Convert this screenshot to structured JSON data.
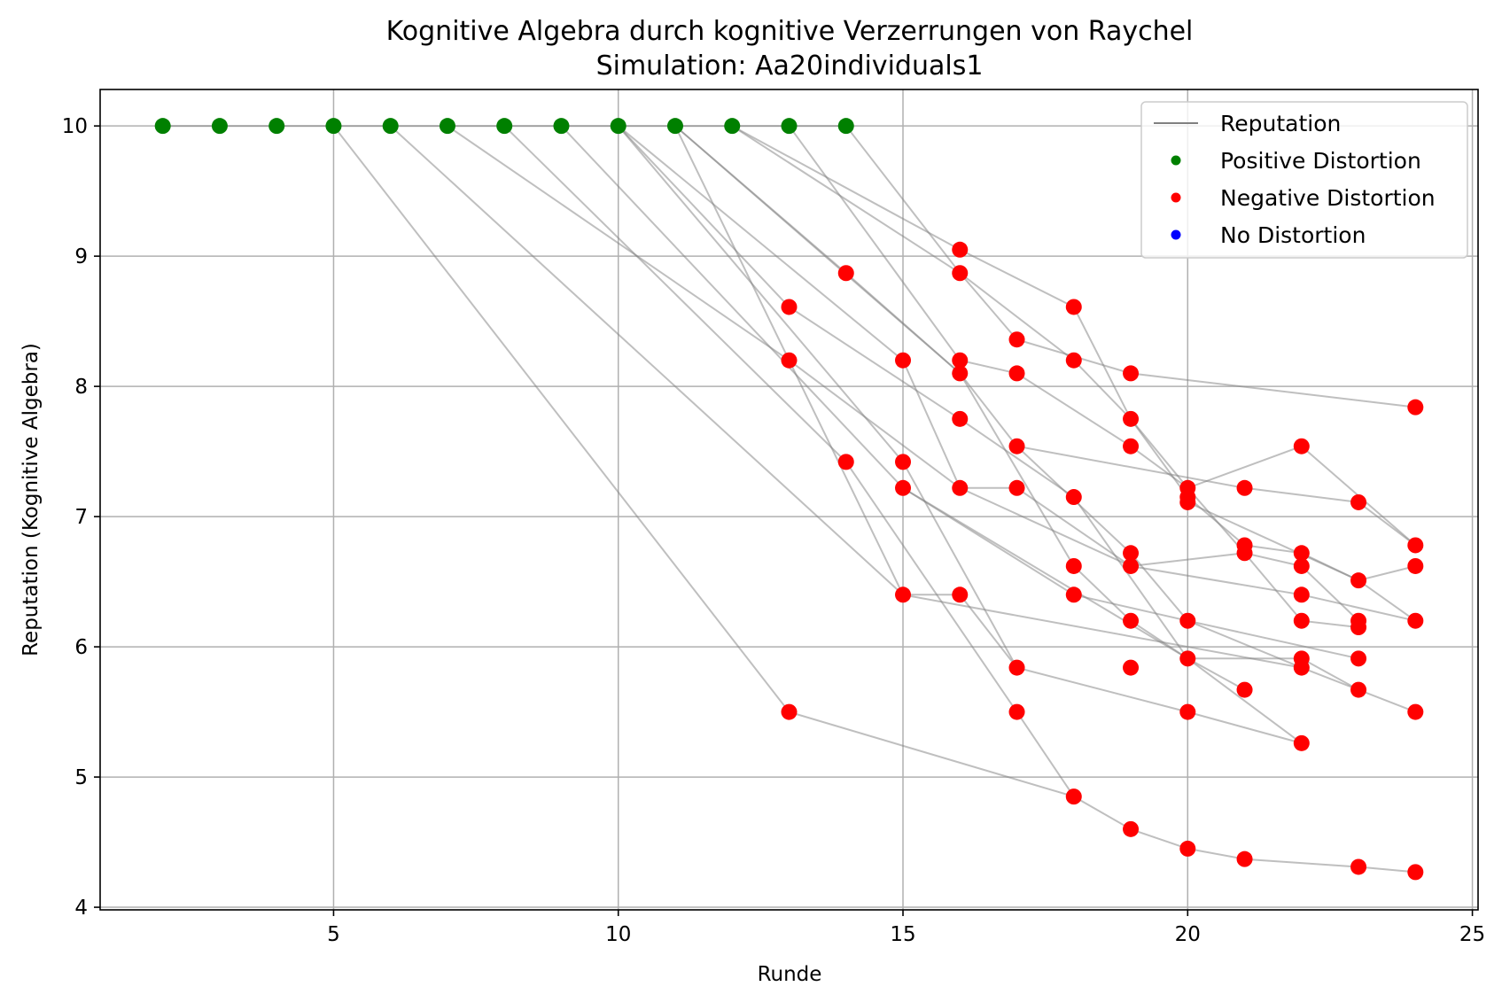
{
  "chart_data": {
    "type": "scatter",
    "title": "Kognitive Algebra durch kognitive Verzerrungen von Raychel",
    "subtitle": "Simulation: Aa20individuals1",
    "xlabel": "Runde",
    "ylabel": "Reputation (Kognitive Algebra)",
    "xlim": [
      0.9,
      25.1
    ],
    "ylim": [
      3.98,
      10.28
    ],
    "xticks": [
      5,
      10,
      15,
      20,
      25
    ],
    "yticks": [
      4,
      5,
      6,
      7,
      8,
      9,
      10
    ],
    "grid": true,
    "legend": {
      "position": "top-right",
      "entries": [
        {
          "label": "Reputation",
          "kind": "line",
          "color": "#808080"
        },
        {
          "label": "Positive Distortion",
          "kind": "marker",
          "color": "#008000"
        },
        {
          "label": "Negative Distortion",
          "kind": "marker",
          "color": "#ff0000"
        },
        {
          "label": "No Distortion",
          "kind": "marker",
          "color": "#0000ff"
        }
      ]
    },
    "colors": {
      "positive": "#008000",
      "negative": "#ff0000",
      "none": "#0000ff",
      "line": "#808080"
    },
    "series": [
      {
        "points": [
          [
            2,
            10
          ],
          [
            3,
            10
          ],
          [
            4,
            10
          ],
          [
            5,
            10
          ],
          [
            6,
            10
          ],
          [
            7,
            10
          ],
          [
            8,
            10
          ],
          [
            9,
            10
          ],
          [
            10,
            10
          ],
          [
            11,
            10
          ],
          [
            12,
            10
          ],
          [
            13,
            10
          ],
          [
            14,
            10
          ]
        ]
      },
      {
        "points": [
          [
            5,
            10
          ],
          [
            13,
            5.5
          ],
          [
            18,
            4.85
          ],
          [
            19,
            4.6
          ],
          [
            20,
            4.45
          ],
          [
            21,
            4.37
          ],
          [
            23,
            4.31
          ],
          [
            24,
            4.27
          ]
        ]
      },
      {
        "points": [
          [
            6,
            10
          ],
          [
            15,
            6.4
          ],
          [
            22,
            5.84
          ]
        ]
      },
      {
        "points": [
          [
            7,
            10
          ],
          [
            13,
            8.2
          ],
          [
            16,
            7.22
          ],
          [
            19,
            6.62
          ],
          [
            22,
            6.4
          ],
          [
            24,
            6.2
          ]
        ]
      },
      {
        "points": [
          [
            8,
            10
          ],
          [
            14,
            7.42
          ],
          [
            17,
            5.5
          ],
          [
            18,
            4.85
          ]
        ]
      },
      {
        "points": [
          [
            9,
            10
          ],
          [
            15,
            7.22
          ],
          [
            20,
            5.91
          ],
          [
            21,
            5.67
          ]
        ]
      },
      {
        "points": [
          [
            10,
            10
          ],
          [
            13,
            8.61
          ],
          [
            16,
            7.75
          ],
          [
            18,
            7.15
          ],
          [
            20,
            5.91
          ],
          [
            22,
            5.26
          ]
        ]
      },
      {
        "points": [
          [
            10,
            10
          ],
          [
            15,
            7.42
          ],
          [
            17,
            5.84
          ],
          [
            20,
            5.5
          ],
          [
            22,
            5.26
          ]
        ]
      },
      {
        "points": [
          [
            10,
            10
          ],
          [
            15,
            8.2
          ],
          [
            16,
            7.22
          ],
          [
            17,
            7.22
          ],
          [
            19,
            6.62
          ],
          [
            21,
            6.72
          ],
          [
            22,
            6.62
          ],
          [
            23,
            6.2
          ]
        ]
      },
      {
        "points": [
          [
            11,
            10
          ],
          [
            13,
            8.2
          ],
          [
            15,
            6.4
          ],
          [
            16,
            6.4
          ],
          [
            17,
            5.84
          ]
        ]
      },
      {
        "points": [
          [
            11,
            10
          ],
          [
            16,
            8.1
          ],
          [
            17,
            7.54
          ],
          [
            19,
            6.72
          ],
          [
            20,
            6.2
          ],
          [
            22,
            5.84
          ],
          [
            24,
            5.5
          ]
        ]
      },
      {
        "points": [
          [
            11,
            10
          ],
          [
            14,
            8.87
          ],
          [
            16,
            8.1
          ],
          [
            18,
            6.62
          ],
          [
            19,
            6.2
          ],
          [
            20,
            5.91
          ],
          [
            22,
            5.91
          ],
          [
            23,
            5.67
          ]
        ]
      },
      {
        "points": [
          [
            12,
            10
          ],
          [
            16,
            9.05
          ],
          [
            18,
            8.61
          ],
          [
            19,
            7.75
          ],
          [
            20,
            7.22
          ],
          [
            21,
            6.72
          ],
          [
            22,
            6.2
          ],
          [
            23,
            6.15
          ]
        ]
      },
      {
        "points": [
          [
            12,
            10
          ],
          [
            16,
            8.87
          ],
          [
            17,
            8.36
          ],
          [
            19,
            8.1
          ],
          [
            24,
            7.84
          ]
        ]
      },
      {
        "points": [
          [
            13,
            10
          ],
          [
            16,
            8.2
          ],
          [
            17,
            8.1
          ],
          [
            19,
            7.54
          ],
          [
            20,
            7.22
          ],
          [
            22,
            7.54
          ],
          [
            24,
            6.78
          ]
        ]
      },
      {
        "points": [
          [
            14,
            10
          ],
          [
            16,
            8.87
          ],
          [
            18,
            8.2
          ],
          [
            19,
            7.75
          ],
          [
            20,
            7.15
          ],
          [
            21,
            6.78
          ],
          [
            22,
            6.72
          ],
          [
            23,
            6.51
          ],
          [
            24,
            6.62
          ]
        ]
      },
      {
        "points": [
          [
            15,
            7.22
          ],
          [
            18,
            6.4
          ],
          [
            20,
            6.2
          ],
          [
            23,
            5.91
          ]
        ]
      },
      {
        "points": [
          [
            17,
            7.54
          ],
          [
            21,
            7.22
          ],
          [
            23,
            7.11
          ],
          [
            24,
            6.78
          ]
        ]
      },
      {
        "points": [
          [
            20,
            7.11
          ],
          [
            23,
            6.51
          ],
          [
            24,
            6.2
          ]
        ]
      }
    ],
    "positive_points": [
      [
        2,
        10
      ],
      [
        3,
        10
      ],
      [
        4,
        10
      ],
      [
        5,
        10
      ],
      [
        6,
        10
      ],
      [
        7,
        10
      ],
      [
        8,
        10
      ],
      [
        9,
        10
      ],
      [
        10,
        10
      ],
      [
        11,
        10
      ],
      [
        12,
        10
      ],
      [
        13,
        10
      ],
      [
        14,
        10
      ]
    ],
    "negative_points": [
      [
        13,
        8.61
      ],
      [
        13,
        8.2
      ],
      [
        13,
        5.5
      ],
      [
        14,
        8.87
      ],
      [
        14,
        7.42
      ],
      [
        15,
        8.2
      ],
      [
        15,
        7.42
      ],
      [
        15,
        7.22
      ],
      [
        15,
        6.4
      ],
      [
        16,
        9.05
      ],
      [
        16,
        8.87
      ],
      [
        16,
        8.2
      ],
      [
        16,
        8.1
      ],
      [
        16,
        7.75
      ],
      [
        16,
        7.22
      ],
      [
        16,
        6.4
      ],
      [
        17,
        8.36
      ],
      [
        17,
        8.1
      ],
      [
        17,
        7.54
      ],
      [
        17,
        7.22
      ],
      [
        17,
        5.84
      ],
      [
        17,
        5.5
      ],
      [
        18,
        8.61
      ],
      [
        18,
        8.2
      ],
      [
        18,
        7.15
      ],
      [
        18,
        6.62
      ],
      [
        18,
        6.4
      ],
      [
        18,
        4.85
      ],
      [
        19,
        8.1
      ],
      [
        19,
        7.75
      ],
      [
        19,
        7.54
      ],
      [
        19,
        6.72
      ],
      [
        19,
        6.62
      ],
      [
        19,
        6.2
      ],
      [
        19,
        5.84
      ],
      [
        19,
        4.6
      ],
      [
        20,
        7.22
      ],
      [
        20,
        7.15
      ],
      [
        20,
        7.11
      ],
      [
        20,
        6.2
      ],
      [
        20,
        5.91
      ],
      [
        20,
        5.5
      ],
      [
        20,
        4.45
      ],
      [
        21,
        7.22
      ],
      [
        21,
        6.78
      ],
      [
        21,
        6.72
      ],
      [
        21,
        5.67
      ],
      [
        21,
        4.37
      ],
      [
        22,
        7.54
      ],
      [
        22,
        6.72
      ],
      [
        22,
        6.62
      ],
      [
        22,
        6.4
      ],
      [
        22,
        6.2
      ],
      [
        22,
        5.91
      ],
      [
        22,
        5.84
      ],
      [
        22,
        5.26
      ],
      [
        23,
        7.11
      ],
      [
        23,
        6.51
      ],
      [
        23,
        6.2
      ],
      [
        23,
        6.15
      ],
      [
        23,
        5.91
      ],
      [
        23,
        5.67
      ],
      [
        23,
        4.31
      ],
      [
        24,
        7.84
      ],
      [
        24,
        6.78
      ],
      [
        24,
        6.62
      ],
      [
        24,
        6.2
      ],
      [
        24,
        5.5
      ],
      [
        24,
        4.27
      ]
    ],
    "none_points": []
  }
}
